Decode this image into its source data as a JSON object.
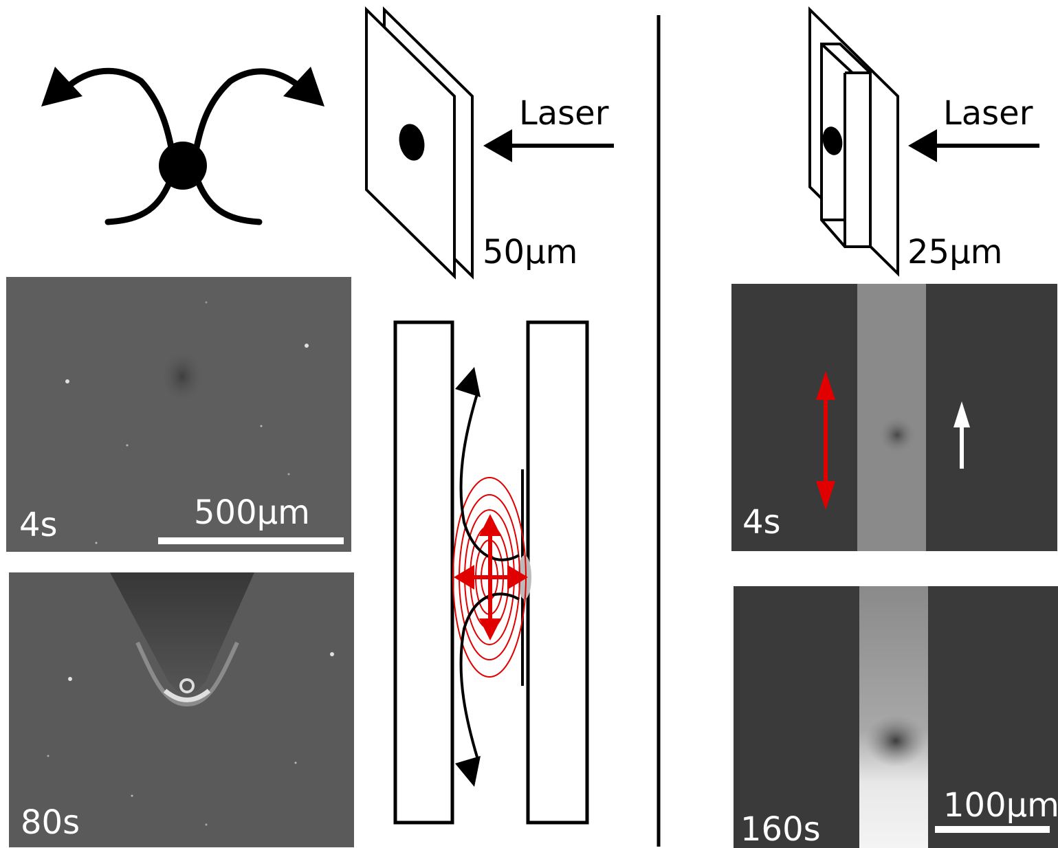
{
  "schematic_left": {
    "laser_label": "Laser",
    "thickness_label": "50µm"
  },
  "schematic_right": {
    "laser_label": "Laser",
    "thickness_label": "25µm"
  },
  "micrographs": {
    "top_left": {
      "time_label": "4s",
      "scale_label": "500µm"
    },
    "bottom_left": {
      "time_label": "80s"
    },
    "top_right": {
      "time_label": "4s"
    },
    "bottom_right": {
      "time_label": "160s",
      "scale_label": "100µm"
    }
  },
  "colors": {
    "ink": "#000000",
    "accent_red": "#e00000",
    "micrograph_bg": "#5e5e5e",
    "channel_dark": "#3a3a3a",
    "channel_bright": "#8a8a8a"
  },
  "icons": [
    "flow-arrows-icon",
    "laser-arrow-icon",
    "red-double-arrow-icon",
    "white-up-arrow-icon"
  ]
}
